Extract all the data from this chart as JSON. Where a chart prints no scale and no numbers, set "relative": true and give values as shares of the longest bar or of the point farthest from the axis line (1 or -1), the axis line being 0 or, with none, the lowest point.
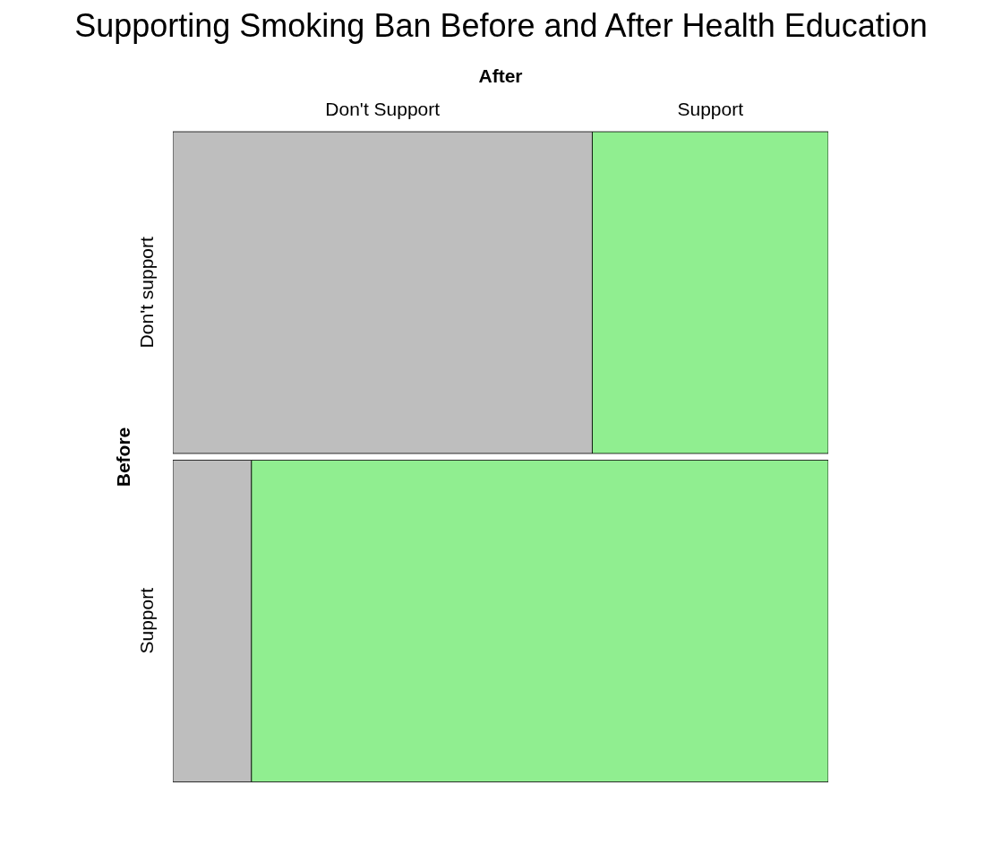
{
  "chart_data": {
    "type": "bar",
    "title": "Supporting Smoking Ban Before and After Health Education",
    "xlabel": "After",
    "ylabel": "Before",
    "orientation": "horizontal",
    "stacked": true,
    "relative": true,
    "categories": [
      "Don't support",
      "Support"
    ],
    "series": [
      {
        "name": "Don't Support",
        "color": "#bebebe",
        "values": [
          0.64,
          0.12
        ]
      },
      {
        "name": "Support",
        "color": "#90ee90",
        "values": [
          0.36,
          0.88
        ]
      }
    ],
    "legend": false,
    "grid": false
  }
}
